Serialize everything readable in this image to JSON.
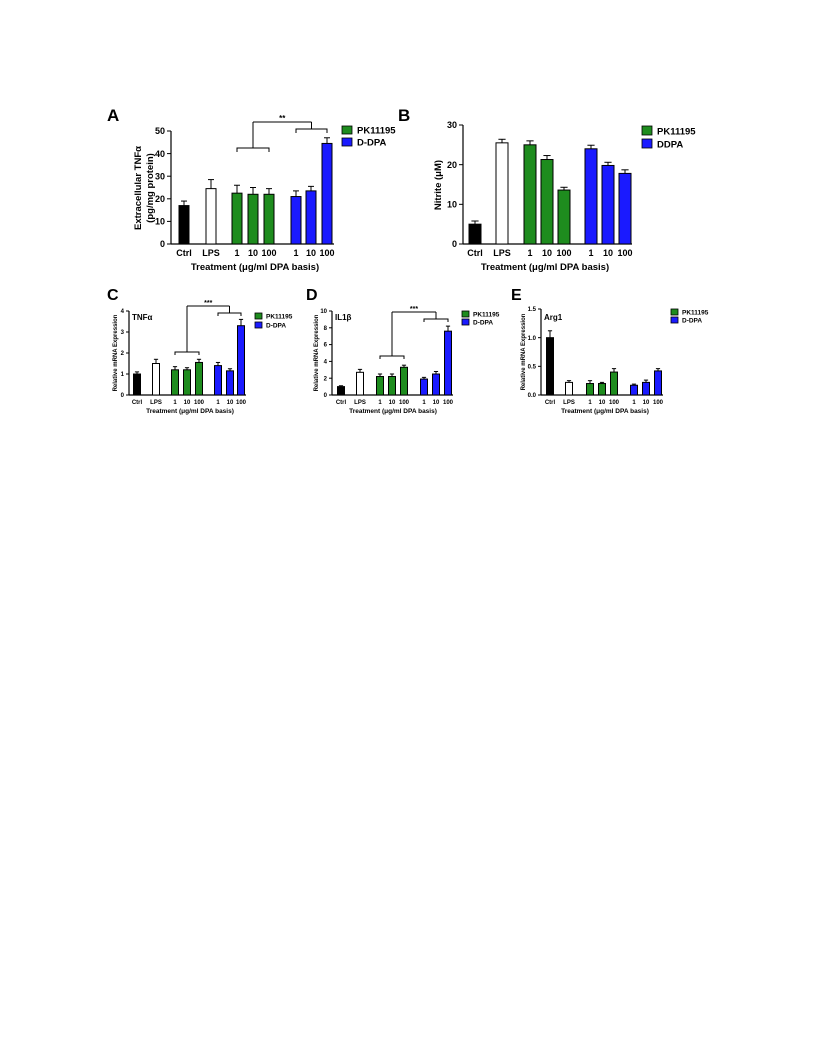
{
  "chart_data": [
    {
      "panel": "A",
      "type": "bar",
      "ylabel": [
        "Extracellular TNFα",
        "(pg/mg protein)"
      ],
      "xlabel": "Treatment (μg/ml DPA basis)",
      "ylim": [
        0,
        50
      ],
      "yticks": [
        "0",
        "10",
        "20",
        "30",
        "40",
        "50"
      ],
      "categories": [
        "Ctrl",
        "LPS",
        "1",
        "10",
        "100",
        "1",
        "10",
        "100"
      ],
      "values": [
        17,
        24.5,
        22.5,
        22,
        22,
        21,
        23.5,
        44.5
      ],
      "errors": [
        2,
        4,
        3.5,
        3,
        2.5,
        2.5,
        2,
        2.5
      ],
      "bar_colors": [
        "#000000",
        "#ffffff",
        "#1e8c1e",
        "#1e8c1e",
        "#1e8c1e",
        "#1a1aff",
        "#1a1aff",
        "#1a1aff"
      ],
      "legend": [
        {
          "name": "PK11195",
          "color": "#1e8c1e"
        },
        {
          "name": "D-DPA",
          "color": "#1a1aff"
        }
      ],
      "significance": {
        "label": "**",
        "compared_bars": [
          [
            2,
            4
          ],
          [
            5,
            7
          ]
        ]
      }
    },
    {
      "panel": "B",
      "type": "bar",
      "ylabel": [
        "Nitrite (μM)"
      ],
      "xlabel": "Treatment (μg/ml DPA basis)",
      "ylim": [
        0,
        30
      ],
      "yticks": [
        "0",
        "10",
        "20",
        "30"
      ],
      "categories": [
        "Ctrl",
        "LPS",
        "1",
        "10",
        "100",
        "1",
        "10",
        "100"
      ],
      "values": [
        5,
        25.5,
        25,
        21.3,
        13.6,
        24,
        19.8,
        17.8
      ],
      "errors": [
        0.8,
        0.9,
        1,
        1,
        0.7,
        0.9,
        0.8,
        0.9
      ],
      "bar_colors": [
        "#000000",
        "#ffffff",
        "#1e8c1e",
        "#1e8c1e",
        "#1e8c1e",
        "#1a1aff",
        "#1a1aff",
        "#1a1aff"
      ],
      "legend": [
        {
          "name": "PK11195",
          "color": "#1e8c1e"
        },
        {
          "name": "DDPA",
          "color": "#1a1aff"
        }
      ]
    },
    {
      "panel": "C",
      "type": "bar",
      "title": "TNFα",
      "ylabel": [
        "Relative mRNA Expression"
      ],
      "xlabel": "Treatment (μg/ml DPA basis)",
      "ylim": [
        0,
        4
      ],
      "yticks": [
        "0",
        "1",
        "2",
        "3",
        "4"
      ],
      "categories": [
        "Ctrl",
        "LPS",
        "1",
        "10",
        "100",
        "1",
        "10",
        "100"
      ],
      "values": [
        1.0,
        1.5,
        1.2,
        1.2,
        1.55,
        1.4,
        1.15,
        3.3
      ],
      "errors": [
        0.1,
        0.2,
        0.15,
        0.1,
        0.15,
        0.15,
        0.1,
        0.3
      ],
      "bar_colors": [
        "#000000",
        "#ffffff",
        "#1e8c1e",
        "#1e8c1e",
        "#1e8c1e",
        "#1a1aff",
        "#1a1aff",
        "#1a1aff"
      ],
      "legend": [
        {
          "name": "PK11195",
          "color": "#1e8c1e"
        },
        {
          "name": "D-DPA",
          "color": "#1a1aff"
        }
      ],
      "significance": {
        "label": "***",
        "compared_bars": [
          [
            2,
            4
          ],
          [
            5,
            7
          ]
        ]
      }
    },
    {
      "panel": "D",
      "type": "bar",
      "title": "IL1β",
      "ylabel": [
        "Relative mRNA Expression"
      ],
      "xlabel": "Treatment (μg/ml DPA basis)",
      "ylim": [
        0,
        10
      ],
      "yticks": [
        "0",
        "2",
        "4",
        "6",
        "8",
        "10"
      ],
      "categories": [
        "Ctrl",
        "LPS",
        "1",
        "10",
        "100",
        "1",
        "10",
        "100"
      ],
      "values": [
        1.0,
        2.7,
        2.2,
        2.2,
        3.3,
        1.9,
        2.5,
        7.6
      ],
      "errors": [
        0.1,
        0.35,
        0.3,
        0.3,
        0.25,
        0.2,
        0.3,
        0.6
      ],
      "bar_colors": [
        "#000000",
        "#ffffff",
        "#1e8c1e",
        "#1e8c1e",
        "#1e8c1e",
        "#1a1aff",
        "#1a1aff",
        "#1a1aff"
      ],
      "legend": [
        {
          "name": "PK11195",
          "color": "#1e8c1e"
        },
        {
          "name": "D-DPA",
          "color": "#1a1aff"
        }
      ],
      "significance": {
        "label": "***",
        "compared_bars": [
          [
            2,
            4
          ],
          [
            5,
            7
          ]
        ]
      }
    },
    {
      "panel": "E",
      "type": "bar",
      "title": "Arg1",
      "ylabel": [
        "Relative mRNA Expression"
      ],
      "xlabel": "Treatment (μg/ml DPA basis)",
      "ylim": [
        0,
        1.5
      ],
      "yticks": [
        "0.0",
        "0.5",
        "1.0",
        "1.5"
      ],
      "categories": [
        "Ctrl",
        "LPS",
        "1",
        "10",
        "100",
        "1",
        "10",
        "100"
      ],
      "values": [
        1.0,
        0.22,
        0.2,
        0.2,
        0.4,
        0.17,
        0.22,
        0.42
      ],
      "errors": [
        0.12,
        0.03,
        0.05,
        0.02,
        0.06,
        0.02,
        0.04,
        0.04
      ],
      "bar_colors": [
        "#000000",
        "#ffffff",
        "#1e8c1e",
        "#1e8c1e",
        "#1e8c1e",
        "#1a1aff",
        "#1a1aff",
        "#1a1aff"
      ],
      "legend": [
        {
          "name": "PK11195",
          "color": "#1e8c1e"
        },
        {
          "name": "D-DPA",
          "color": "#1a1aff"
        }
      ]
    }
  ]
}
